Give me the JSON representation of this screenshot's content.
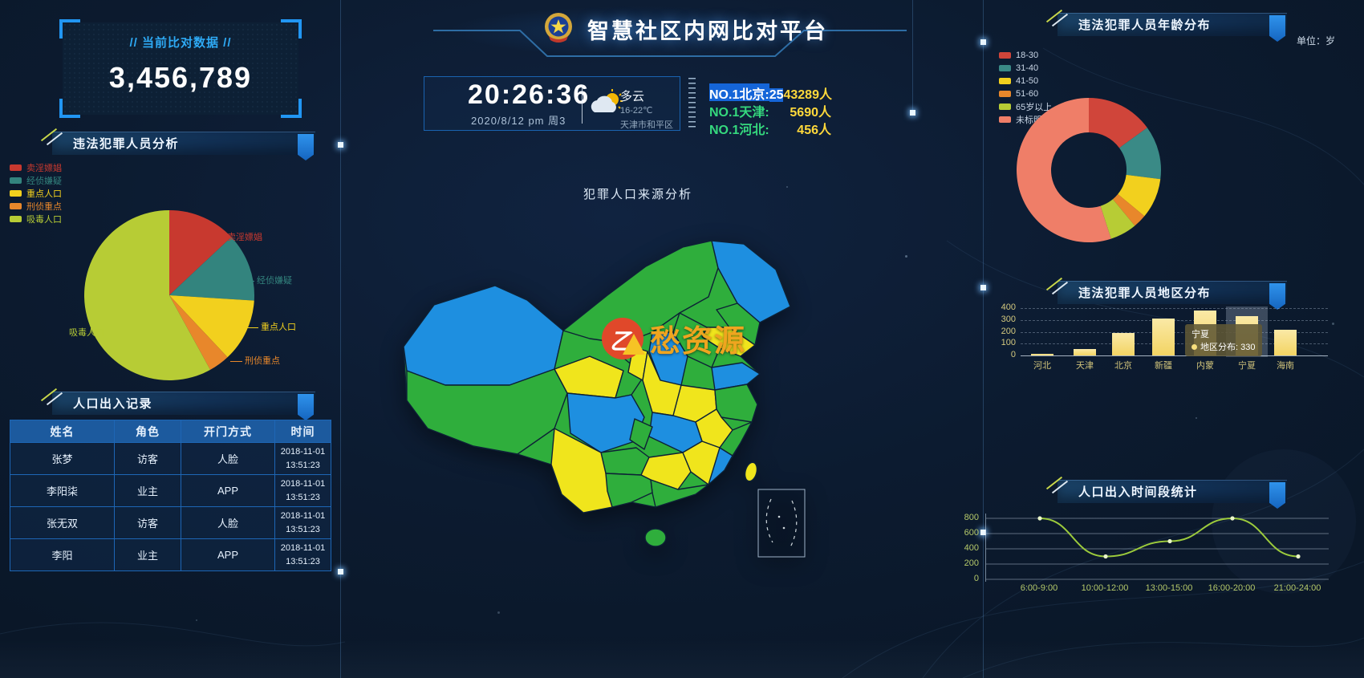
{
  "page": {
    "title": "智慧社区内网比对平台"
  },
  "stat_box": {
    "label": "// 当前比对数据 //",
    "value": "3,456,789"
  },
  "clock": {
    "time": "20:26:36",
    "date": "2020/8/12  pm  周3",
    "weather": "多云",
    "temp": "16-22℃",
    "location": "天津市和平区"
  },
  "rankings": [
    {
      "label": "NO.1北京:",
      "value_hl": "25",
      "value": "43289人"
    },
    {
      "label": "NO.1天津:",
      "value": "5690人"
    },
    {
      "label": "NO.1河北:",
      "value": "456人"
    }
  ],
  "map": {
    "title": "犯罪人口来源分析",
    "watermark": "愁资源",
    "colors": {
      "green": "#2fae3c",
      "blue": "#1e8fe0",
      "yellow": "#f0e51c"
    }
  },
  "panels": {
    "pie": "违法犯罪人员分析",
    "records": "人口出入记录",
    "age": "违法犯罪人员年龄分布",
    "age_unit": "单位：岁",
    "region": "违法犯罪人员地区分布",
    "timeline": "人口出入时间段统计"
  },
  "records_table": {
    "headers": [
      "姓名",
      "角色",
      "开门方式",
      "时间"
    ],
    "rows": [
      {
        "name": "张梦",
        "role": "访客",
        "method": "人脸",
        "date": "2018-11-01",
        "time": "13:51:23"
      },
      {
        "name": "李阳柒",
        "role": "业主",
        "method": "APP",
        "date": "2018-11-01",
        "time": "13:51:23"
      },
      {
        "name": "张无双",
        "role": "访客",
        "method": "人脸",
        "date": "2018-11-01",
        "time": "13:51:23"
      },
      {
        "name": "李阳",
        "role": "业主",
        "method": "APP",
        "date": "2018-11-01",
        "time": "13:51:23"
      }
    ]
  },
  "chart_data": [
    {
      "id": "crime-type-pie",
      "type": "pie",
      "title": "违法犯罪人员分析",
      "labels": [
        "卖淫嫖娼",
        "经侦嫌疑",
        "重点人口",
        "刑侦重点",
        "吸毒人口"
      ],
      "values": [
        13,
        13,
        12,
        4,
        58
      ],
      "colors": [
        "#c8392f",
        "#33847e",
        "#f2d01e",
        "#e8872b",
        "#b7cc35"
      ],
      "legend_position": "left"
    },
    {
      "id": "age-donut",
      "type": "donut",
      "title": "违法犯罪人员年龄分布",
      "unit": "单位：岁",
      "labels": [
        "18-30",
        "31-40",
        "41-50",
        "51-60",
        "65岁以上",
        "未标明"
      ],
      "values": [
        15,
        12,
        9,
        3,
        6,
        55
      ],
      "colors": [
        "#d0453a",
        "#3a8a86",
        "#f2d01e",
        "#e8872b",
        "#b7cc35",
        "#ef7e68"
      ]
    },
    {
      "id": "region-bar",
      "type": "bar",
      "title": "违法犯罪人员地区分布",
      "categories": [
        "河北",
        "天津",
        "北京",
        "新疆",
        "内蒙",
        "宁夏",
        "海南"
      ],
      "values": [
        10,
        55,
        190,
        310,
        380,
        330,
        220
      ],
      "ylim": [
        0,
        400
      ],
      "yticks": [
        0,
        100,
        200,
        300,
        400
      ],
      "bar_color": "#f6dc7e",
      "highlight_index": 5,
      "tooltip": {
        "title": "宁夏",
        "text": "地区分布: 330"
      }
    },
    {
      "id": "time-line",
      "type": "line",
      "title": "人口出入时间段统计",
      "categories": [
        "6:00-9:00",
        "10:00-12:00",
        "13:00-15:00",
        "16:00-20:00",
        "21:00-24:00"
      ],
      "values": [
        800,
        300,
        500,
        800,
        300
      ],
      "ylim": [
        0,
        800
      ],
      "yticks": [
        0,
        200,
        400,
        600,
        800
      ],
      "line_color": "#9ccb3c"
    }
  ]
}
